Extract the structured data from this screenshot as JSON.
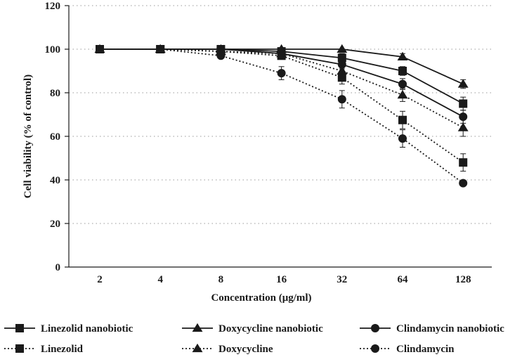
{
  "chart_data": {
    "type": "line",
    "title": "",
    "xlabel": "Concentration (μg/ml)",
    "ylabel": "Cell viability (% of control)",
    "categories": [
      "2",
      "4",
      "8",
      "16",
      "32",
      "64",
      "128"
    ],
    "ylim": [
      0,
      120
    ],
    "yticks": [
      0,
      20,
      40,
      60,
      80,
      100,
      120
    ],
    "grid": "horizontal-dotted",
    "legend_position": "bottom",
    "series": [
      {
        "name": "Linezolid nanobiotic",
        "marker": "square",
        "line": "solid",
        "values": [
          100,
          100,
          100,
          99,
          96,
          90,
          75
        ],
        "errors": [
          0,
          0,
          0,
          1,
          2,
          2,
          3
        ]
      },
      {
        "name": "Doxycycline nanobiotic",
        "marker": "triangle",
        "line": "solid",
        "values": [
          100,
          100,
          100,
          100,
          100,
          96.5,
          84
        ],
        "errors": [
          0,
          0,
          0,
          0,
          0,
          1.5,
          2
        ]
      },
      {
        "name": "Clindamycin nanobiotic",
        "marker": "circle",
        "line": "solid",
        "values": [
          100,
          100,
          100,
          98,
          93,
          84,
          69
        ],
        "errors": [
          0,
          0,
          0,
          1,
          2,
          2.5,
          3
        ]
      },
      {
        "name": "Linezolid",
        "marker": "square",
        "line": "dotted",
        "values": [
          100,
          100,
          99,
          97,
          87,
          67.5,
          48
        ],
        "errors": [
          0,
          0,
          0,
          1,
          3,
          4,
          4
        ]
      },
      {
        "name": "Doxycycline",
        "marker": "triangle",
        "line": "dotted",
        "values": [
          100,
          100,
          99,
          98,
          90,
          79,
          64
        ],
        "errors": [
          0,
          0,
          0,
          1,
          3,
          3,
          4
        ]
      },
      {
        "name": "Clindamycin",
        "marker": "circle",
        "line": "dotted",
        "values": [
          100,
          100,
          97,
          89,
          77,
          59,
          38.5
        ],
        "errors": [
          0,
          0,
          1,
          3,
          4,
          4,
          1
        ]
      }
    ]
  }
}
